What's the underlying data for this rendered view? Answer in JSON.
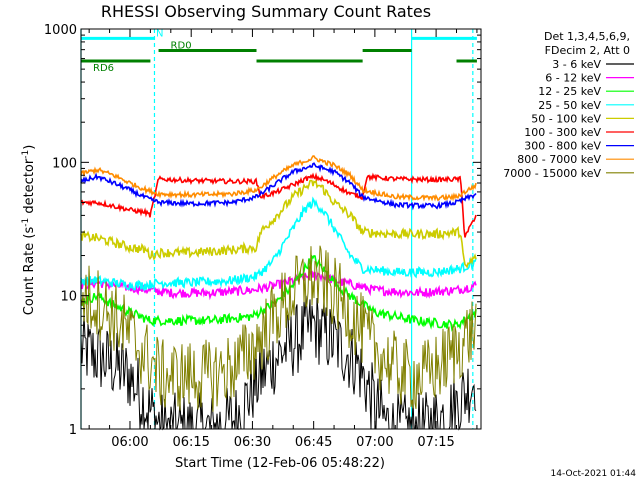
{
  "chart_data": {
    "type": "line",
    "title": "RHESSI Observing Summary Count Rates",
    "xlabel": "Start Time (12-Feb-06 05:48:22)",
    "ylabel_main": "Count Rate (s",
    "ylabel_sup1": "-1",
    "ylabel_mid": " detector",
    "ylabel_sup2": "-1",
    "ylabel_end": ")",
    "y_scale": "log",
    "xlim": [
      "05:48",
      "07:26"
    ],
    "ylim": [
      1,
      1000
    ],
    "x_ticks": [
      "06:00",
      "06:15",
      "06:30",
      "06:45",
      "07:00",
      "07:15"
    ],
    "y_ticks": [
      "1",
      "10",
      "100",
      "1000"
    ],
    "legend_header": [
      "Det 1,3,4,5,6,9,",
      "FDecim 2, Att 0"
    ],
    "legend_position": "right",
    "footer_date": "14-Oct-2021 01:44",
    "vlines_solid": [
      "05:48",
      "07:09"
    ],
    "vlines_dashed": [
      "06:06",
      "07:24"
    ],
    "flags": [
      {
        "label": "N",
        "color": "#00ffff",
        "level": 850,
        "segments": [
          [
            "05:48",
            "06:06"
          ],
          [
            "07:09",
            "07:25"
          ]
        ]
      },
      {
        "label": "RD0",
        "color": "#008000",
        "level": 690,
        "segments": [
          [
            "06:07",
            "06:31"
          ],
          [
            "06:57",
            "07:09"
          ]
        ]
      },
      {
        "label": "RD6",
        "color": "#008000",
        "level": 575,
        "segments": [
          [
            "05:48",
            "06:05"
          ],
          [
            "06:31",
            "06:57"
          ],
          [
            "07:20",
            "07:25"
          ]
        ]
      }
    ],
    "series": [
      {
        "name": "3 - 6 keV",
        "color": "#000000",
        "x": [
          "05:48",
          "05:52",
          "05:56",
          "06:00",
          "06:04",
          "06:08",
          "06:14",
          "06:20",
          "06:26",
          "06:30",
          "06:34",
          "06:38",
          "06:42",
          "06:45",
          "06:48",
          "06:52",
          "06:56",
          "07:00",
          "07:04",
          "07:08",
          "07:12",
          "07:16",
          "07:20",
          "07:25"
        ],
        "y": [
          4,
          3.5,
          3,
          2.5,
          1.5,
          1,
          1,
          1,
          1.2,
          2,
          3,
          4,
          5,
          6,
          5,
          4,
          3,
          1.5,
          1,
          1,
          1,
          1.2,
          1.5,
          2.5
        ]
      },
      {
        "name": "6 - 12 keV",
        "color": "#ff00ff",
        "x": [
          "05:48",
          "05:52",
          "05:56",
          "06:00",
          "06:05",
          "06:10",
          "06:20",
          "06:30",
          "06:36",
          "06:40",
          "06:44",
          "06:46",
          "06:50",
          "06:55",
          "07:00",
          "07:10",
          "07:20",
          "07:25"
        ],
        "y": [
          12,
          12.5,
          12,
          11.5,
          11,
          10.5,
          10.5,
          11,
          12,
          13,
          14,
          14.5,
          13,
          12,
          11,
          10.5,
          11,
          12
        ]
      },
      {
        "name": "12 - 25 keV",
        "color": "#00ff00",
        "x": [
          "05:48",
          "05:52",
          "05:56",
          "06:00",
          "06:05",
          "06:10",
          "06:20",
          "06:30",
          "06:36",
          "06:40",
          "06:44",
          "06:45",
          "06:48",
          "06:52",
          "06:56",
          "07:00",
          "07:10",
          "07:20",
          "07:25"
        ],
        "y": [
          9,
          10,
          8.5,
          7.5,
          6.5,
          6.5,
          6.5,
          7,
          9,
          12,
          18,
          19,
          15,
          11,
          9,
          7.5,
          6.5,
          6,
          7.5
        ]
      },
      {
        "name": "25 - 50 keV",
        "color": "#00ffff",
        "x": [
          "05:48",
          "05:52",
          "05:56",
          "06:00",
          "06:04",
          "06:07",
          "06:15",
          "06:25",
          "06:31",
          "06:35",
          "06:40",
          "06:43",
          "06:45",
          "06:47",
          "06:50",
          "06:54",
          "06:57",
          "07:05",
          "07:15",
          "07:21",
          "07:25"
        ],
        "y": [
          13,
          13,
          12.5,
          12,
          12,
          12.5,
          12.5,
          13,
          14,
          18,
          32,
          45,
          50,
          45,
          32,
          20,
          16,
          15,
          15,
          16,
          18
        ]
      },
      {
        "name": "50 - 100 keV",
        "color": "#cccc00",
        "x": [
          "05:48",
          "05:52",
          "05:56",
          "06:00",
          "06:04",
          "06:05",
          "06:07",
          "06:15",
          "06:25",
          "06:31",
          "06:32",
          "06:36",
          "06:40",
          "06:43",
          "06:45",
          "06:47",
          "06:50",
          "06:54",
          "06:57",
          "07:05",
          "07:15",
          "07:21",
          "07:22",
          "07:25"
        ],
        "y": [
          28,
          27,
          25,
          23,
          22,
          20,
          21,
          21,
          22,
          23,
          30,
          40,
          55,
          65,
          70,
          65,
          50,
          40,
          30,
          29,
          29,
          30,
          16,
          20
        ]
      },
      {
        "name": "100 - 300 keV",
        "color": "#ff0000",
        "x": [
          "05:48",
          "05:52",
          "05:56",
          "06:00",
          "06:04",
          "06:05",
          "06:07",
          "06:15",
          "06:25",
          "06:31",
          "06:32",
          "06:36",
          "06:40",
          "06:43",
          "06:45",
          "06:47",
          "06:50",
          "06:54",
          "06:57",
          "06:58",
          "07:05",
          "07:15",
          "07:21",
          "07:22",
          "07:25"
        ],
        "y": [
          50,
          50,
          47,
          44,
          42,
          40,
          75,
          73,
          72,
          72,
          55,
          60,
          68,
          75,
          78,
          75,
          68,
          58,
          55,
          78,
          75,
          74,
          75,
          28,
          40
        ]
      },
      {
        "name": "300 - 800 keV",
        "color": "#0000ff",
        "x": [
          "05:48",
          "05:52",
          "05:56",
          "06:00",
          "06:04",
          "06:07",
          "06:15",
          "06:25",
          "06:31",
          "06:36",
          "06:40",
          "06:45",
          "06:50",
          "06:54",
          "06:57",
          "07:05",
          "07:15",
          "07:20",
          "07:25"
        ],
        "y": [
          72,
          78,
          70,
          62,
          54,
          50,
          49,
          50,
          55,
          70,
          85,
          95,
          85,
          70,
          55,
          48,
          47,
          50,
          58
        ]
      },
      {
        "name": "800 - 7000 keV",
        "color": "#ff8c00",
        "x": [
          "05:48",
          "05:52",
          "05:56",
          "06:00",
          "06:04",
          "06:07",
          "06:15",
          "06:25",
          "06:31",
          "06:36",
          "06:40",
          "06:45",
          "06:50",
          "06:54",
          "06:57",
          "07:05",
          "07:15",
          "07:20",
          "07:25"
        ],
        "y": [
          82,
          88,
          80,
          70,
          62,
          58,
          57,
          58,
          62,
          80,
          95,
          108,
          95,
          80,
          62,
          55,
          54,
          55,
          68
        ]
      },
      {
        "name": "7000 - 15000 keV",
        "color": "#808000",
        "x": [
          "05:48",
          "05:52",
          "05:56",
          "06:00",
          "06:04",
          "06:08",
          "06:14",
          "06:20",
          "06:26",
          "06:30",
          "06:34",
          "06:38",
          "06:42",
          "06:45",
          "06:48",
          "06:52",
          "06:56",
          "07:00",
          "07:04",
          "07:08",
          "07:12",
          "07:16",
          "07:20",
          "07:25"
        ],
        "y": [
          10,
          9,
          7,
          5,
          3.5,
          2.5,
          2.5,
          2.5,
          3,
          4,
          6,
          9,
          12,
          14,
          12,
          9,
          6,
          4,
          3,
          2.5,
          2.5,
          3,
          4,
          6
        ]
      }
    ]
  }
}
